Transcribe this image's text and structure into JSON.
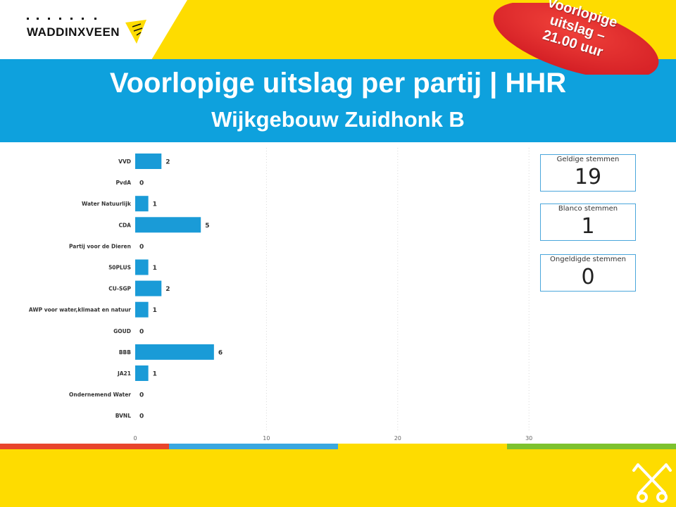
{
  "header": {
    "logo_text": "WADDINXVEEN",
    "title": "Voorlopige uitslag per partij | HHR",
    "subtitle": "Wijkgebouw Zuidhonk B"
  },
  "badge": {
    "lines": [
      "Voorlopige",
      "uitslag –",
      "21.00 uur"
    ],
    "color": "#E8262A"
  },
  "kpis": [
    {
      "label": "Geldige stemmen",
      "value": "19"
    },
    {
      "label": "Blanco stemmen",
      "value": "1"
    },
    {
      "label": "Ongeldigde stemmen",
      "value": "0"
    }
  ],
  "colors": {
    "header_blue": "#0EA1DD",
    "background_yellow": "#FEDC00",
    "bar": "#1A9BD7",
    "stripe_red": "#E8452C",
    "stripe_blue": "#3AA7E0",
    "stripe_yellow": "#FEDC00",
    "stripe_green": "#7DC22F"
  },
  "chart_data": {
    "type": "bar",
    "orientation": "horizontal",
    "categories": [
      "VVD",
      "PvdA",
      "Water Natuurlijk",
      "CDA",
      "Partij voor de Dieren",
      "50PLUS",
      "CU-SGP",
      "AWP voor water,klimaat en natuur",
      "GOUD",
      "BBB",
      "JA21",
      "Ondernemend Water",
      "BVNL"
    ],
    "values": [
      2,
      0,
      1,
      5,
      0,
      1,
      2,
      1,
      0,
      6,
      1,
      0,
      0
    ],
    "xlim": [
      0,
      40
    ],
    "xticks": [
      0,
      10,
      20,
      30
    ],
    "grid": true,
    "data_labels": true
  }
}
